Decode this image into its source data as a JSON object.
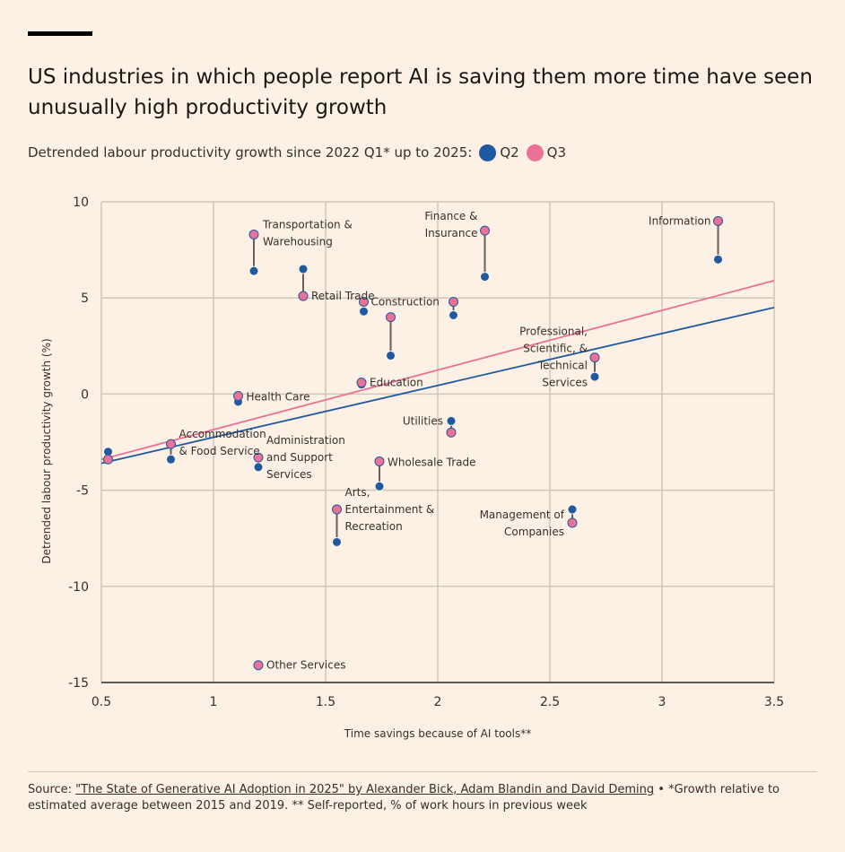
{
  "title": "US industries in which people report AI is saving them more time have seen unusually high productivity growth",
  "subtitle": "Detrended labour productivity growth since 2022 Q1* up to 2025:",
  "legend": [
    {
      "name": "Q2",
      "color": "#1f5aa0"
    },
    {
      "name": "Q3",
      "color": "#ec7196"
    }
  ],
  "source": {
    "prefix": "Source: ",
    "link_text": "\"The State of Generative AI Adoption in 2025\" by Alexander Bick, Adam Blandin and David Deming",
    "suffix": " • *Growth relative to estimated average between 2015 and 2019. ** Self-reported, % of work hours in previous week"
  },
  "chart_data": {
    "type": "scatter",
    "xlabel": "Time savings because of AI tools**",
    "ylabel": "Detrended labour productivity growth (%)",
    "xlim": [
      0.5,
      3.5
    ],
    "ylim": [
      -15,
      10
    ],
    "xticks": [
      "0.5",
      "1",
      "1.5",
      "2",
      "2.5",
      "3",
      "3.5"
    ],
    "yticks": [
      "10",
      "5",
      "0",
      "-5",
      "-10",
      "-15"
    ],
    "grid": true,
    "series": [
      {
        "name": "Q2",
        "color": "#1f5aa0"
      },
      {
        "name": "Q3",
        "color": "#ec7196"
      }
    ],
    "trendlines": [
      {
        "series": "Q2",
        "color": "#1f5aa0",
        "from": [
          0.5,
          -3.6
        ],
        "to": [
          3.5,
          4.5
        ]
      },
      {
        "series": "Q3",
        "color": "#ec7196",
        "from": [
          0.5,
          -3.4
        ],
        "to": [
          3.5,
          5.9
        ]
      }
    ],
    "points": [
      {
        "label": "",
        "x": 0.53,
        "q2": -3.0,
        "q3": -3.4
      },
      {
        "label": "Accommodation & Food Service",
        "x": 0.81,
        "q2": -3.4,
        "q3": -2.6
      },
      {
        "label": "Health Care",
        "x": 1.11,
        "q2": -0.4,
        "q3": -0.1
      },
      {
        "label": "Transportation & Warehousing",
        "x": 1.18,
        "q2": 6.4,
        "q3": 8.3
      },
      {
        "label": "Other Services",
        "x": 1.2,
        "q2": -14.1,
        "q3": -14.1
      },
      {
        "label": "Administration and Support Services",
        "x": 1.2,
        "q2": -3.8,
        "q3": -3.3
      },
      {
        "label": "Retail Trade",
        "x": 1.4,
        "q2": 6.5,
        "q3": 5.1
      },
      {
        "label": "Arts, Entertainment & Recreation",
        "x": 1.55,
        "q2": -7.7,
        "q3": -6.0
      },
      {
        "label": "Education",
        "x": 1.66,
        "q2": 0.5,
        "q3": 0.6
      },
      {
        "label": "Construction",
        "x": 1.67,
        "q2": 4.3,
        "q3": 4.8
      },
      {
        "label": "",
        "x": 1.79,
        "q2": 2.0,
        "q3": 4.0
      },
      {
        "label": "Wholesale Trade",
        "x": 1.74,
        "q2": -4.8,
        "q3": -3.5
      },
      {
        "label": "",
        "x": 2.07,
        "q2": 4.1,
        "q3": 4.8
      },
      {
        "label": "Utilities",
        "x": 2.06,
        "q2": -1.4,
        "q3": -2.0
      },
      {
        "label": "Finance & Insurance",
        "x": 2.21,
        "q2": 6.1,
        "q3": 8.5
      },
      {
        "label": "Management of Companies",
        "x": 2.6,
        "q2": -6.0,
        "q3": -6.7
      },
      {
        "label": "Professional, Scientific, & Technical Services",
        "x": 2.7,
        "q2": 0.9,
        "q3": 1.9
      },
      {
        "label": "Information",
        "x": 3.25,
        "q2": 7.0,
        "q3": 9.0
      }
    ]
  }
}
